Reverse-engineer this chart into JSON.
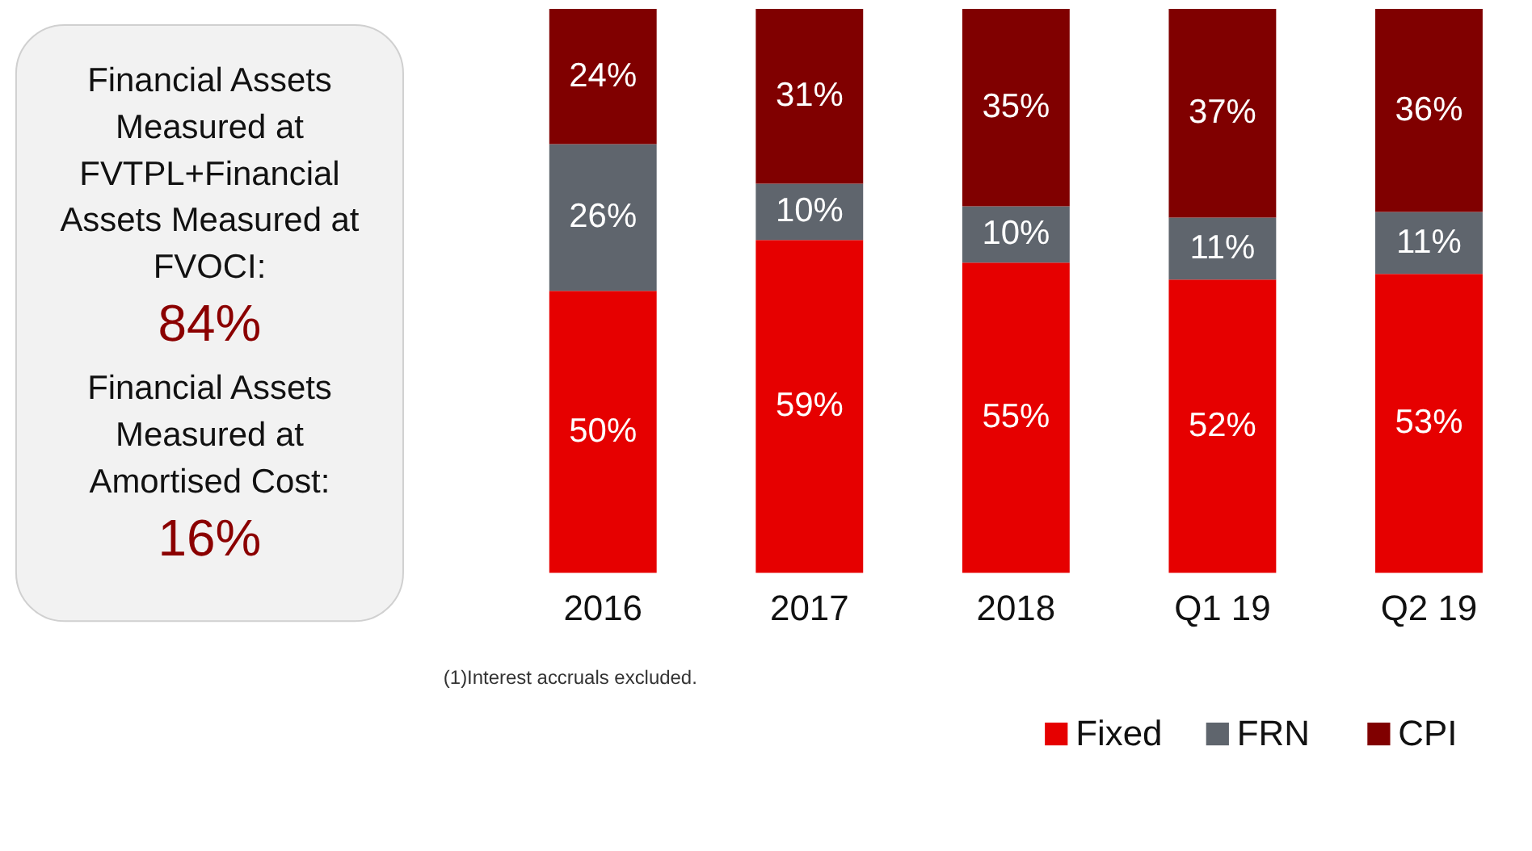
{
  "chart_data": [
    {
      "type": "other",
      "annotations": [
        "Financial Assets Measured at FVTPL+Financial Assets Measured at FVOCI:",
        "84%",
        "Financial Assets Measured at Amortised Cost:",
        "16%"
      ],
      "color": "#8b0000"
    },
    {
      "type": "bar",
      "stacked": true,
      "data_labels": true,
      "legend": "bottom right",
      "categories": [
        "2016",
        "2017",
        "2018",
        "Q1 19",
        "Q2 19"
      ],
      "series": [
        {
          "name": "Fixed",
          "color": "#e60000",
          "values": [
            50,
            59,
            55,
            52,
            53
          ],
          "value_labels": [
            "50%",
            "59%",
            "55%",
            "52%",
            "53%"
          ]
        },
        {
          "name": "FRN",
          "color": "#5f656d",
          "values": [
            26,
            10,
            10,
            11,
            11
          ],
          "value_labels": [
            "26%",
            "10%",
            "10%",
            "11%",
            "11%"
          ]
        },
        {
          "name": "CPI",
          "color": "#800000",
          "values": [
            24,
            31,
            35,
            37,
            36
          ],
          "value_labels": [
            "24%",
            "31%",
            "35%",
            "37%",
            "36%"
          ]
        }
      ],
      "annotations": [
        "(1)Interest accruals excluded."
      ]
    }
  ]
}
